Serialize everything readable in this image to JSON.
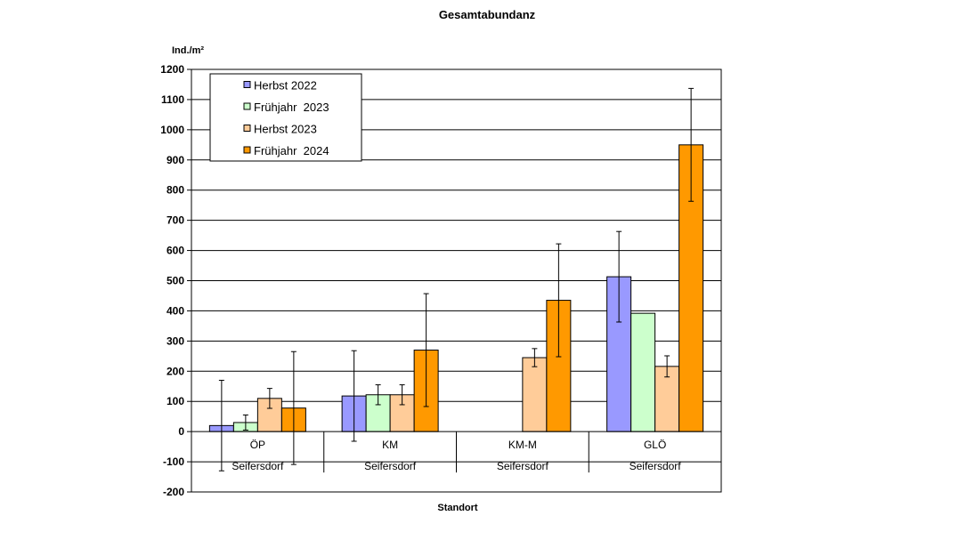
{
  "chart_data": {
    "type": "bar",
    "title": "Gesamtabundanz",
    "ylabel": "Ind./m²",
    "xlabel": "Standort",
    "ylim": [
      -200,
      1200
    ],
    "yticks": [
      -200,
      -100,
      0,
      100,
      200,
      300,
      400,
      500,
      600,
      700,
      800,
      900,
      1000,
      1100,
      1200
    ],
    "grid": true,
    "legend_position": "top-left",
    "categories": [
      "ÖP",
      "KM",
      "KM-M",
      "GLÖ"
    ],
    "group_label": "Seifersdorf",
    "series": [
      {
        "name": "Herbst 2022",
        "color": "#9999ff",
        "values": [
          20,
          118,
          null,
          513
        ],
        "errors": [
          150,
          150,
          null,
          150
        ]
      },
      {
        "name": "Frühjahr  2023",
        "color": "#ccffcc",
        "values": [
          30,
          122,
          null,
          392
        ],
        "errors": [
          25,
          33,
          null,
          0
        ]
      },
      {
        "name": "Herbst 2023",
        "color": "#ffcc99",
        "values": [
          110,
          122,
          245,
          216
        ],
        "errors": [
          33,
          33,
          30,
          35
        ]
      },
      {
        "name": "Frühjahr  2024",
        "color": "#ff9900",
        "values": [
          78,
          270,
          435,
          950
        ],
        "errors": [
          187,
          187,
          187,
          187
        ]
      }
    ]
  }
}
